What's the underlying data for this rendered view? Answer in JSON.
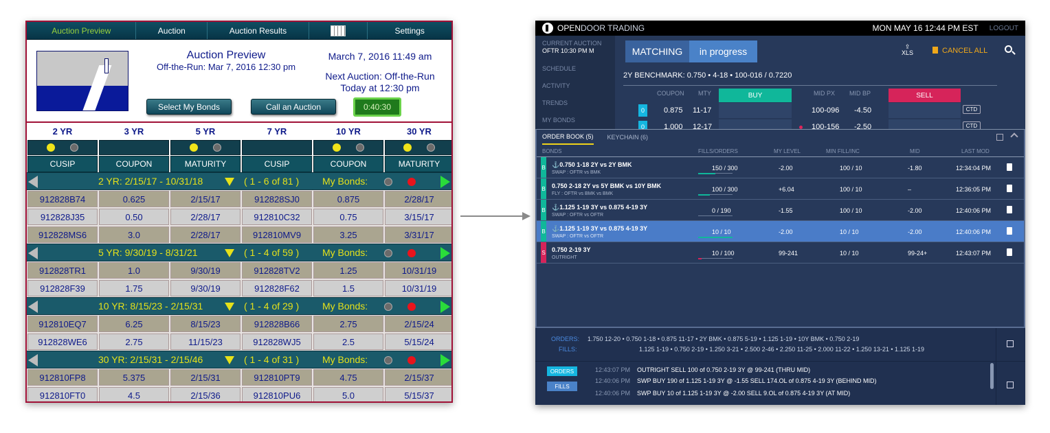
{
  "left": {
    "nav": [
      "Auction Preview",
      "Auction",
      "Auction Results",
      "",
      "Settings"
    ],
    "title": "Auction Preview",
    "subtitle": "Off-the-Run: Mar 7, 2016 12:30 pm",
    "datetime": "March 7, 2016 11:49 am",
    "next1": "Next Auction: Off-the-Run",
    "next2": "Today at 12:30 pm",
    "select_btn": "Select My Bonds",
    "call_btn": "Call an Auction",
    "timer": "0:40:30",
    "years": [
      "2 YR",
      "3 YR",
      "5 YR",
      "7 YR",
      "10 YR",
      "30 YR"
    ],
    "cols": [
      "CUSIP",
      "COUPON",
      "MATURITY",
      "CUSIP",
      "COUPON",
      "MATURITY"
    ],
    "groups": [
      {
        "label": "2 YR: 2/15/17 - 10/31/18",
        "count": "( 1 - 6 of 81 )",
        "mb": "My Bonds:",
        "rows": [
          [
            "912828B74",
            "0.625",
            "2/15/17",
            "912828SJ0",
            "0.875",
            "2/28/17"
          ],
          [
            "912828J35",
            "0.50",
            "2/28/17",
            "912810C32",
            "0.75",
            "3/15/17"
          ],
          [
            "912828MS6",
            "3.0",
            "2/28/17",
            "912810MV9",
            "3.25",
            "3/31/17"
          ]
        ]
      },
      {
        "label": "5 YR: 9/30/19 - 8/31/21",
        "count": "( 1 - 4 of 59 )",
        "mb": "My Bonds:",
        "rows": [
          [
            "912828TR1",
            "1.0",
            "9/30/19",
            "912828TV2",
            "1.25",
            "10/31/19"
          ],
          [
            "912828F39",
            "1.75",
            "9/30/19",
            "912828F62",
            "1.5",
            "10/31/19"
          ]
        ]
      },
      {
        "label": "10 YR: 8/15/23 - 2/15/31",
        "count": "( 1 - 4 of 29 )",
        "mb": "My Bonds:",
        "rows": [
          [
            "912810EQ7",
            "6.25",
            "8/15/23",
            "912828B66",
            "2.75",
            "2/15/24"
          ],
          [
            "912828WE6",
            "2.75",
            "11/15/23",
            "912828WJ5",
            "2.5",
            "5/15/24"
          ]
        ]
      },
      {
        "label": "30 YR: 2/15/31 - 2/15/46",
        "count": "( 1 - 4 of 31 )",
        "mb": "My Bonds:",
        "rows": [
          [
            "912810FP8",
            "5.375",
            "2/15/31",
            "912810PT9",
            "4.75",
            "2/15/37"
          ],
          [
            "912810FT0",
            "4.5",
            "2/15/36",
            "912810PU6",
            "5.0",
            "5/15/37"
          ]
        ]
      }
    ]
  },
  "right": {
    "brand1": "OPEN",
    "brand2": "DOOR TRADING",
    "datetime": "MON MAY 16 12:44 PM EST",
    "logout": "LOGOUT",
    "current_label": "CURRENT AUCTION",
    "current_value": "OFTR 10:30 PM   M",
    "side": [
      "SCHEDULE",
      "ACTIVITY",
      "TRENDS",
      "MY BONDS"
    ],
    "matching": "MATCHING",
    "progress": "in progress",
    "xls": "XLS",
    "cancel_all": "CANCEL ALL",
    "benchmark": "2Y BENCHMARK: 0.750 • 4-18 • 100-016 / 0.7220",
    "bhead": {
      "coupon": "COUPON",
      "mty": "MTY",
      "buy": "BUY",
      "midpx": "MID PX",
      "midbp": "MID BP",
      "sell": "SELL"
    },
    "brows": [
      {
        "q": "0",
        "coupon": "0.875",
        "mty": "11-17",
        "midpx": "100-096",
        "midbp": "-4.50",
        "ctd": "CTD"
      },
      {
        "q": "0",
        "coupon": "1.000",
        "mty": "12-17",
        "midpx": "100-156",
        "midbp": "-2.50",
        "ctd": "CTD"
      }
    ],
    "tabs": [
      "ORDER BOOK (5)",
      "KEYCHAIN (6)"
    ],
    "obhead": {
      "bonds": "BONDS",
      "fills": "FILLS/ORDERS",
      "level": "MY LEVEL",
      "minfill": "MIN FILL/INC",
      "mid": "MID",
      "last": "LAST MOD"
    },
    "orders": [
      {
        "side": "B",
        "name": "⚓0.750 1-18 2Y vs 2Y BMK",
        "sub": "SWAP : OFTR vs BMK",
        "fills": "150 / 300",
        "fill": 0.5,
        "level": "-2.00",
        "minfill": "100 / 10",
        "mid": "-1.80",
        "last": "12:34:04 PM"
      },
      {
        "side": "B",
        "name": "0.750 2-18 2Y vs 5Y BMK vs 10Y BMK",
        "sub": "FLY : OFTR vs BMK vs BMK",
        "fills": "100 / 300",
        "fill": 0.33,
        "level": "+6.04",
        "minfill": "100 / 10",
        "mid": "–",
        "last": "12:36:05 PM"
      },
      {
        "side": "B",
        "name": "⚓1.125 1-19 3Y vs 0.875 4-19 3Y",
        "sub": "SWAP : OFTR vs OFTR",
        "fills": "0 / 190",
        "fill": 0,
        "level": "-1.55",
        "minfill": "100 / 10",
        "mid": "-2.00",
        "last": "12:40:06 PM"
      },
      {
        "side": "B",
        "name": "⚓1.125 1-19 3Y vs 0.875 4-19 3Y",
        "sub": "SWAP : OFTR vs OFTR",
        "fills": "10 / 10",
        "fill": 1,
        "level": "-2.00",
        "minfill": "10 / 10",
        "mid": "-2.00",
        "last": "12:40:06 PM"
      },
      {
        "side": "S",
        "name": "0.750 2-19 3Y",
        "sub": "OUTRIGHT",
        "fills": "10 / 100",
        "fill": 0.1,
        "level": "99-241",
        "minfill": "10 / 10",
        "mid": "99-24+",
        "last": "12:43:07 PM"
      }
    ],
    "orders_label": "ORDERS:",
    "fills_label": "FILLS:",
    "orders_line": "1.750 12-20 • 0.750 1-18 • 0.875 11-17 • 2Y BMK • 0.875 5-19 • 1.125 1-19 • 10Y BMK • 0.750 2-19",
    "fills_line": "1.125 1-19 • 0.750 2-19 • 1.250 3-21 • 2.500 2-46 • 2.250 11-25 • 2.000 11-22 • 1.250 13-21 • 1.125 1-19",
    "btn_orders": "ORDERS",
    "btn_fills": "FILLS",
    "log": [
      {
        "t": "12:43:07 PM",
        "m": "OUTRIGHT SELL  100 of 0.750 2-19 3Y @ 99-241  (THRU MID)"
      },
      {
        "t": "12:40:06 PM",
        "m": "SWP BUY 190 of  1.125 1-19 3Y @ -1.55 SELL 174.OL of 0.875 4-19 3Y  (BEHIND MID)"
      },
      {
        "t": "12:40:06 PM",
        "m": "SWP BUY 10 of  1.125 1-19 3Y @ -2.00 SELL 9.OL of 0.875 4-19 3Y  (AT MID)"
      }
    ]
  }
}
